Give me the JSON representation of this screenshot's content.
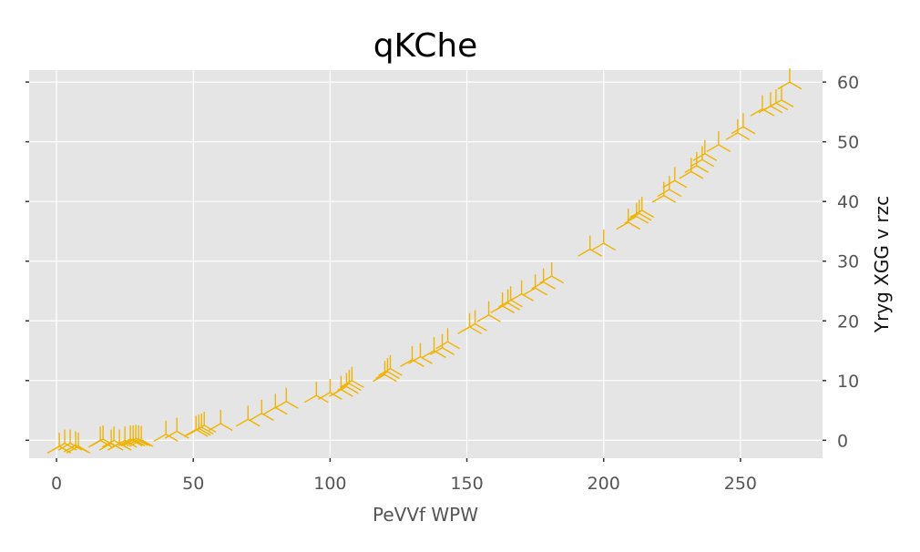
{
  "chart_data": {
    "type": "scatter",
    "title": "qKChe",
    "xlabel": "PeVVf WPW",
    "ylabel": "Yryg XGG v rzc",
    "xlim": [
      -10,
      280
    ],
    "ylim": [
      -3,
      62
    ],
    "x_ticks": [
      0,
      50,
      100,
      150,
      200,
      250
    ],
    "y_ticks": [
      0,
      10,
      20,
      30,
      40,
      50,
      60
    ],
    "y_axis_position": "right",
    "grid": true,
    "marker": "tri_down",
    "colors": {
      "marker": "#f0b400",
      "background": "#e5e5e5",
      "grid": "#ffffff"
    },
    "series": [
      {
        "x": [
          1,
          3,
          5,
          7,
          8,
          16,
          17,
          20,
          21,
          23,
          25,
          27,
          28,
          29,
          30,
          31,
          40,
          44,
          51,
          52,
          53,
          54,
          60,
          70,
          75,
          80,
          84,
          95,
          100,
          104,
          106,
          107,
          108,
          120,
          121,
          122,
          130,
          133,
          138,
          141,
          143,
          151,
          153,
          158,
          163,
          165,
          166,
          170,
          175,
          178,
          181,
          195,
          200,
          209,
          212,
          213,
          214,
          222,
          224,
          226,
          232,
          234,
          236,
          237,
          242,
          249,
          251,
          258,
          261,
          263,
          265,
          268
        ],
        "y": [
          -1,
          -0.5,
          -0.5,
          -0.8,
          -1,
          0,
          0.2,
          -0.5,
          0,
          -0.5,
          0,
          0.2,
          0.2,
          0.3,
          0.2,
          0.1,
          1,
          1.5,
          1.8,
          2,
          2.2,
          2.5,
          2.8,
          3.5,
          4.5,
          5.5,
          6.5,
          7.5,
          8,
          8.5,
          9,
          9.5,
          10,
          11,
          11.5,
          12,
          13.5,
          14,
          15,
          15.5,
          16.5,
          19,
          19.5,
          21,
          22.5,
          23,
          23.5,
          24.5,
          25.5,
          26.5,
          27.5,
          32,
          33,
          36.5,
          37.5,
          38,
          38.5,
          41,
          42,
          43.5,
          45,
          46,
          47,
          48,
          49.5,
          51.5,
          52.5,
          55.5,
          56,
          56.5,
          57,
          60
        ]
      }
    ]
  }
}
